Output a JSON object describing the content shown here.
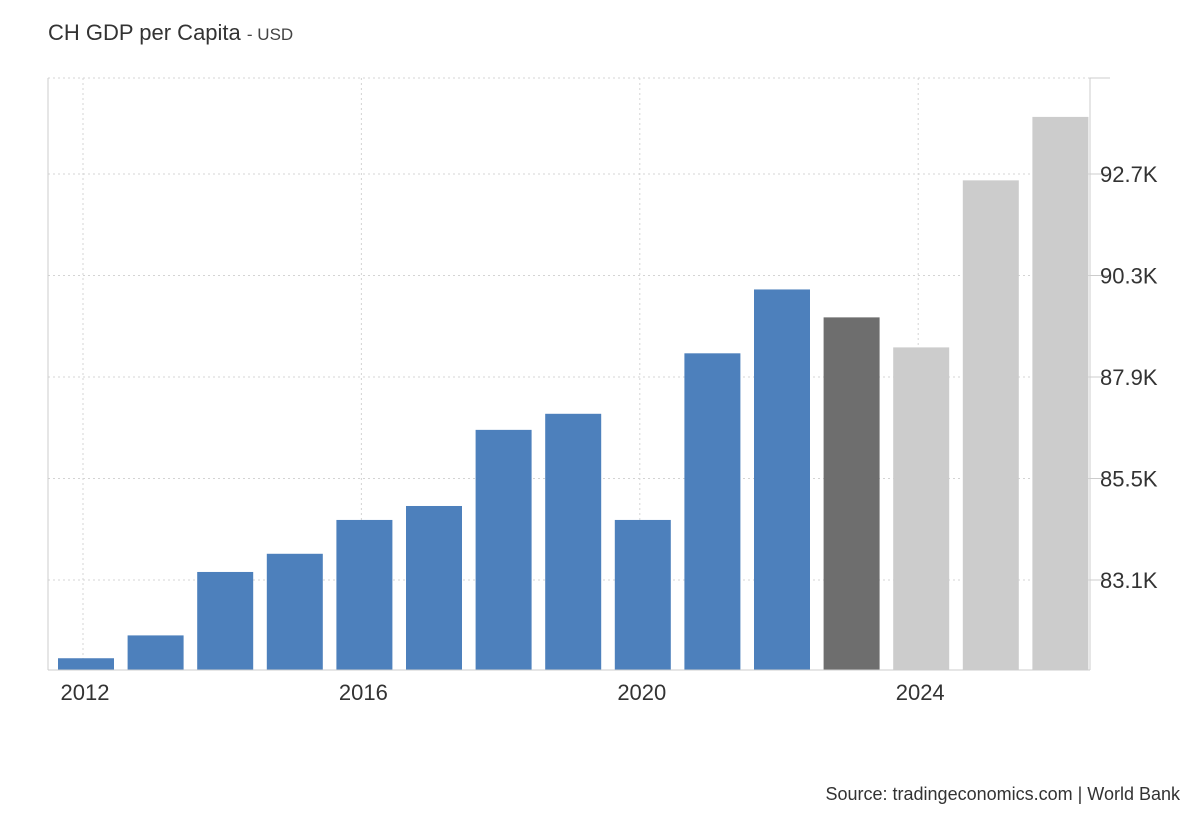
{
  "header": {
    "title": "CH GDP per Capita",
    "unit_suffix": "- USD"
  },
  "footer": {
    "source": "Source: tradingeconomics.com | World Bank"
  },
  "colors": {
    "historical": "#4d80bc",
    "latest": "#6e6e6e",
    "forecast": "#cccccc",
    "grid": "#d4d4d4",
    "axis": "#cccccc"
  },
  "chart_data": {
    "type": "bar",
    "title": "CH GDP per Capita",
    "unit": "USD",
    "categories": [
      "2012",
      "2013",
      "2014",
      "2015",
      "2016",
      "2017",
      "2018",
      "2019",
      "2020",
      "2021",
      "2022",
      "2023",
      "2024",
      "2025",
      "2026"
    ],
    "values": [
      81250,
      81790,
      83290,
      83720,
      84520,
      84850,
      86650,
      87030,
      84520,
      88460,
      89970,
      89310,
      88600,
      92550,
      94050
    ],
    "status": [
      "historical",
      "historical",
      "historical",
      "historical",
      "historical",
      "historical",
      "historical",
      "historical",
      "historical",
      "historical",
      "historical",
      "latest",
      "forecast",
      "forecast",
      "forecast"
    ],
    "y_ticks": [
      {
        "value": 83100,
        "label": "83.1K"
      },
      {
        "value": 85500,
        "label": "85.5K"
      },
      {
        "value": 87900,
        "label": "87.9K"
      },
      {
        "value": 90300,
        "label": "90.3K"
      },
      {
        "value": 92700,
        "label": "92.7K"
      }
    ],
    "x_ticks": [
      "2012",
      "2016",
      "2020",
      "2024"
    ],
    "ylim": [
      81000,
      95000
    ],
    "y_axis_position": "right",
    "grid": true,
    "legend": "none"
  }
}
